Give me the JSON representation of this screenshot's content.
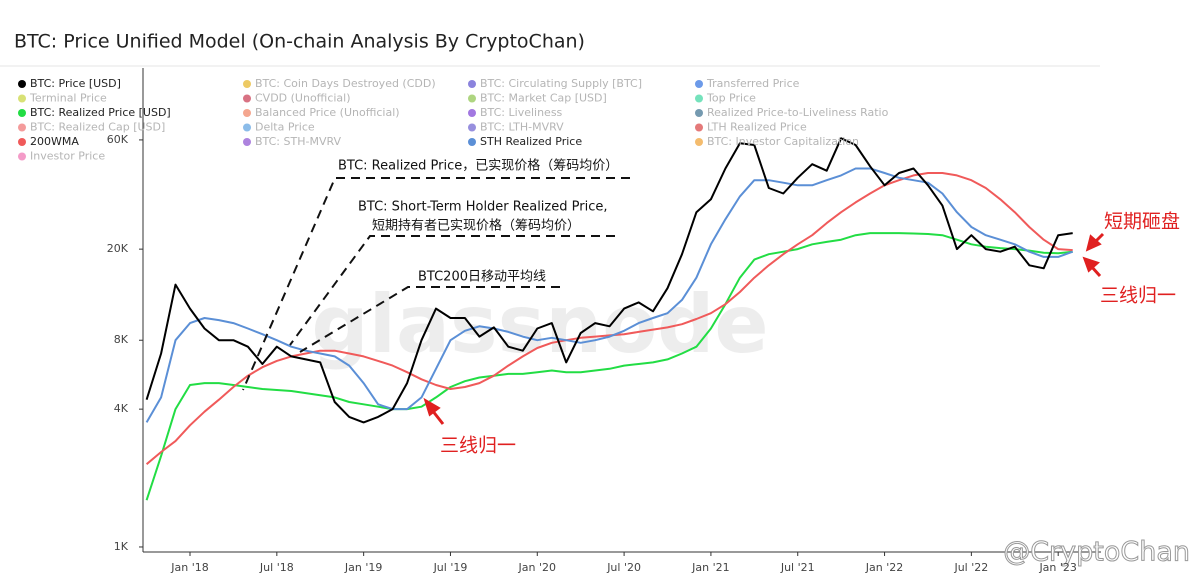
{
  "chart_data": {
    "type": "line",
    "title": "BTC: Price Unified Model (On-chain Analysis By CryptoChan)",
    "log_scale": true,
    "grid": false,
    "x": [
      "2017-10",
      "2017-11",
      "2017-12",
      "2018-01",
      "2018-02",
      "2018-03",
      "2018-04",
      "2018-05",
      "2018-06",
      "2018-07",
      "2018-08",
      "2018-09",
      "2018-10",
      "2018-11",
      "2018-12",
      "2019-01",
      "2019-02",
      "2019-03",
      "2019-04",
      "2019-05",
      "2019-06",
      "2019-07",
      "2019-08",
      "2019-09",
      "2019-10",
      "2019-11",
      "2019-12",
      "2020-01",
      "2020-02",
      "2020-03",
      "2020-04",
      "2020-05",
      "2020-06",
      "2020-07",
      "2020-08",
      "2020-09",
      "2020-10",
      "2020-11",
      "2020-12",
      "2021-01",
      "2021-02",
      "2021-03",
      "2021-04",
      "2021-05",
      "2021-06",
      "2021-07",
      "2021-08",
      "2021-09",
      "2021-10",
      "2021-11",
      "2021-12",
      "2022-01",
      "2022-02",
      "2022-03",
      "2022-04",
      "2022-05",
      "2022-06",
      "2022-07",
      "2022-08",
      "2022-09",
      "2022-10",
      "2022-11",
      "2022-12",
      "2023-01",
      "2023-02"
    ],
    "xlim": [
      "2017-10",
      "2023-04"
    ],
    "xticks": [
      {
        "value": "2018-01",
        "label": "Jan '18"
      },
      {
        "value": "2018-07",
        "label": "Jul '18"
      },
      {
        "value": "2019-01",
        "label": "Jan '19"
      },
      {
        "value": "2019-07",
        "label": "Jul '19"
      },
      {
        "value": "2020-01",
        "label": "Jan '20"
      },
      {
        "value": "2020-07",
        "label": "Jul '20"
      },
      {
        "value": "2021-01",
        "label": "Jan '21"
      },
      {
        "value": "2021-07",
        "label": "Jul '21"
      },
      {
        "value": "2022-01",
        "label": "Jan '22"
      },
      {
        "value": "2022-07",
        "label": "Jul '22"
      },
      {
        "value": "2023-01",
        "label": "Jan '23"
      }
    ],
    "ylim": [
      970,
      120000
    ],
    "yticks": [
      {
        "value": 1000,
        "label": "1K"
      },
      {
        "value": 4000,
        "label": "4K"
      },
      {
        "value": 8000,
        "label": "8K"
      },
      {
        "value": 20000,
        "label": "20K"
      },
      {
        "value": 60000,
        "label": "60K"
      }
    ],
    "series": [
      {
        "name": "BTC: Price [USD]",
        "color": "#000000",
        "visible": true,
        "values": [
          4400,
          7000,
          14000,
          11000,
          9000,
          8000,
          8000,
          7500,
          6300,
          7500,
          6800,
          6600,
          6400,
          4300,
          3700,
          3500,
          3700,
          4000,
          5200,
          8000,
          11000,
          10000,
          10000,
          8300,
          9100,
          7500,
          7200,
          9000,
          9500,
          6400,
          8600,
          9500,
          9200,
          11000,
          11700,
          10700,
          13500,
          19000,
          29000,
          33000,
          45000,
          58000,
          57000,
          37000,
          35000,
          41000,
          47000,
          44000,
          61000,
          57000,
          46000,
          38000,
          43000,
          45000,
          38000,
          31000,
          20000,
          23000,
          20000,
          19500,
          20500,
          17000,
          16500,
          23000,
          23500
        ]
      },
      {
        "name": "BTC: Coin Days Destroyed (CDD)",
        "color": "#e6b422",
        "visible": false
      },
      {
        "name": "BTC: Circulating Supply [BTC]",
        "color": "#5a4fcf",
        "visible": false
      },
      {
        "name": "Transferred Price",
        "color": "#2d6fe0",
        "visible": false
      },
      {
        "name": "Terminal Price",
        "color": "#c8d43a",
        "visible": false
      },
      {
        "name": "CVDD (Unofficial)",
        "color": "#c8364f",
        "visible": false
      },
      {
        "name": "BTC: Market Cap [USD]",
        "color": "#8bc34a",
        "visible": false
      },
      {
        "name": "Top Price",
        "color": "#3ad6a0",
        "visible": false
      },
      {
        "name": "BTC: Realized Price [USD]",
        "color": "#22dd44",
        "visible": true,
        "values": [
          1600,
          2500,
          4000,
          5100,
          5200,
          5200,
          5100,
          5000,
          4900,
          4850,
          4800,
          4700,
          4600,
          4500,
          4300,
          4200,
          4100,
          4000,
          4000,
          4100,
          4500,
          5000,
          5300,
          5500,
          5600,
          5700,
          5700,
          5800,
          5900,
          5800,
          5800,
          5900,
          6000,
          6200,
          6300,
          6400,
          6600,
          7000,
          7500,
          9000,
          11500,
          15000,
          18000,
          19000,
          19500,
          20000,
          21000,
          21500,
          22000,
          23000,
          23500,
          23500,
          23500,
          23400,
          23300,
          23000,
          22000,
          21000,
          20500,
          20200,
          20000,
          19700,
          19300,
          19200,
          19500
        ]
      },
      {
        "name": "Balanced Price (Unofficial)",
        "color": "#f08060",
        "visible": false
      },
      {
        "name": "BTC: Liveliness",
        "color": "#7b3fd4",
        "visible": false
      },
      {
        "name": "Realized Price-to-Liveliness Ratio",
        "color": "#3a6f8f",
        "visible": false
      },
      {
        "name": "BTC: Realized Cap [USD]",
        "color": "#f07070",
        "visible": false
      },
      {
        "name": "Delta Price",
        "color": "#5aa0e0",
        "visible": false
      },
      {
        "name": "BTC: LTH-MVRV",
        "color": "#6b5fd0",
        "visible": false
      },
      {
        "name": "LTH Realized Price",
        "color": "#d84040",
        "visible": false
      },
      {
        "name": "200WMA",
        "color": "#f05a5a",
        "visible": true,
        "values": [
          2300,
          2600,
          2900,
          3400,
          3900,
          4400,
          5000,
          5600,
          6100,
          6500,
          6800,
          7000,
          7200,
          7200,
          7000,
          6800,
          6500,
          6200,
          5800,
          5400,
          5100,
          4900,
          5000,
          5200,
          5600,
          6200,
          6800,
          7400,
          7800,
          8000,
          8200,
          8300,
          8400,
          8500,
          8700,
          8900,
          9100,
          9400,
          9900,
          10500,
          11500,
          13000,
          15000,
          17000,
          19000,
          21000,
          23000,
          26000,
          29000,
          32000,
          35000,
          38000,
          40000,
          42000,
          43000,
          43000,
          42000,
          40000,
          37000,
          33000,
          29000,
          25000,
          22000,
          20000,
          19800
        ]
      },
      {
        "name": "BTC: STH-MVRV",
        "color": "#8a4fd0",
        "visible": false
      },
      {
        "name": "STH Realized Price",
        "color": "#5b8fd6",
        "visible": true,
        "values": [
          3500,
          4500,
          8000,
          9500,
          10000,
          9800,
          9500,
          9000,
          8500,
          8000,
          7500,
          7200,
          7000,
          6800,
          6200,
          5200,
          4200,
          4000,
          4000,
          4500,
          6000,
          8000,
          8800,
          9200,
          9000,
          8700,
          8300,
          8000,
          8200,
          8000,
          7800,
          8000,
          8300,
          8800,
          9500,
          10000,
          10500,
          12000,
          15000,
          21000,
          27000,
          34000,
          40000,
          40000,
          39000,
          38000,
          38000,
          40000,
          42000,
          45000,
          45000,
          43000,
          41000,
          40000,
          39000,
          35000,
          29000,
          25000,
          23000,
          22000,
          21000,
          19500,
          18500,
          18500,
          19500
        ]
      },
      {
        "name": "BTC: Investor Capitalization",
        "color": "#f0a030",
        "visible": false
      },
      {
        "name": "Investor Price",
        "color": "#f070b0",
        "visible": false
      }
    ],
    "annotations": [
      "BTC: Realized Price，已实现价格（筹码均价）",
      "BTC: Short-Term Holder Realized Price,",
      "短期持有者已实现价格（筹码均价）",
      "BTC200日移动平均线",
      "三线归一",
      "短期砸盘",
      "三线归一"
    ],
    "watermark": "glassnode",
    "credit": "@CryptoChan"
  }
}
